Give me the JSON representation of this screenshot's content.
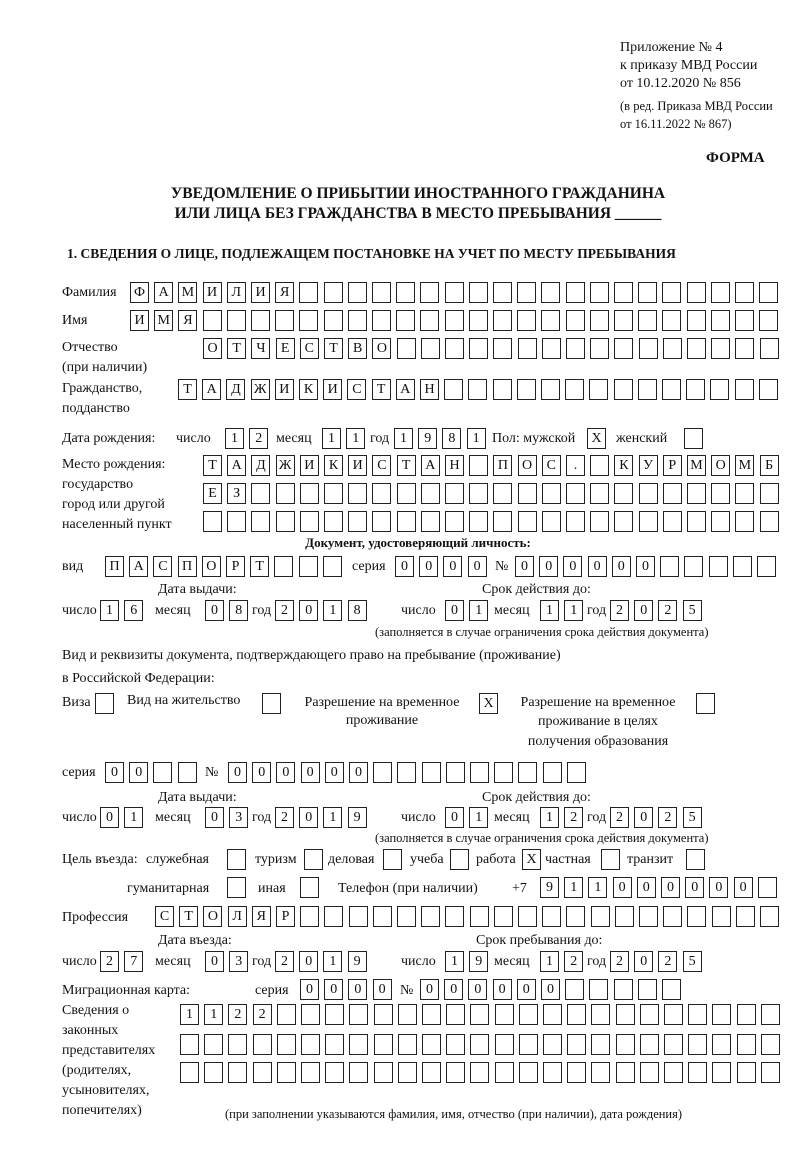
{
  "header": {
    "appendix": [
      "Приложение № 4",
      "к приказу МВД России",
      "от 10.12.2020 № 856"
    ],
    "revision": [
      "(в ред. Приказа МВД России",
      "от 16.11.2022 № 867)"
    ],
    "form_label": "ФОРМА",
    "title_line1": "УВЕДОМЛЕНИЕ О ПРИБЫТИИ ИНОСТРАННОГО ГРАЖДАНИНА",
    "title_line2": "ИЛИ ЛИЦА БЕЗ ГРАЖДАНСТВА В МЕСТО ПРЕБЫВАНИЯ ______",
    "section_title": "1. СВЕДЕНИЯ О ЛИЦЕ, ПОДЛЕЖАЩЕМ ПОСТАНОВКЕ НА УЧЕТ ПО МЕСТУ ПРЕБЫВАНИЯ"
  },
  "labels": {
    "day": "число",
    "month": "месяц",
    "year": "год",
    "series": "серия",
    "number": "№"
  },
  "person": {
    "surname": {
      "label": "Фамилия",
      "value": "ФАМИЛИЯ"
    },
    "name": {
      "label": "Имя",
      "value": "ИМЯ"
    },
    "patronymic": {
      "label1": "Отчество",
      "label2": "(при наличии)",
      "value": "ОТЧЕСТВО"
    },
    "citizenship": {
      "label1": "Гражданство,",
      "label2": "подданство",
      "value": "ТАДЖИКИСТАН"
    },
    "birth_date": {
      "label": "Дата рождения:",
      "day": "12",
      "month": "11",
      "year": "1981"
    },
    "sex": {
      "label": "Пол: мужской",
      "male": "X",
      "female_label": "женский",
      "female": ""
    },
    "birth_place": {
      "label": [
        "Место рождения:",
        "государство",
        "город или другой",
        "населенный пункт"
      ],
      "lines": [
        "ТАДЖИКИСТАН ПОС. КУРМОМБ",
        "ЕЗ",
        ""
      ]
    }
  },
  "identity_doc": {
    "heading": "Документ, удостоверяющий личность:",
    "kind_label": "вид",
    "kind": "ПАСПОРТ",
    "series": "0000",
    "number": "000000",
    "issue_label": "Дата выдачи:",
    "issue": {
      "day": "16",
      "month": "08",
      "year": "2018"
    },
    "valid_label": "Срок действия до:",
    "valid": {
      "day": "01",
      "month": "11",
      "year": "2025"
    },
    "note": "(заполняется в случае ограничения срока действия документа)"
  },
  "residence_doc": {
    "heading1": "Вид и реквизиты документа, подтверждающего право на пребывание (проживание)",
    "heading2": "в Российской Федерации:",
    "options": {
      "visa": {
        "label": "Виза",
        "mark": ""
      },
      "residence_permit": {
        "label": "Вид на жительство",
        "mark": ""
      },
      "temp_residence": {
        "label1": "Разрешение на временное",
        "label2": "проживание",
        "mark": "X"
      },
      "temp_residence_edu": {
        "label1": "Разрешение на временное",
        "label2": "проживание в целях",
        "label3": "получения образования",
        "mark": ""
      }
    },
    "series": "00",
    "number": "000000",
    "issue_label": "Дата выдачи:",
    "issue": {
      "day": "01",
      "month": "03",
      "year": "2019"
    },
    "valid_label": "Срок действия до:",
    "valid": {
      "day": "01",
      "month": "12",
      "year": "2025"
    },
    "note": "(заполняется в случае ограничения срока действия документа)"
  },
  "purpose": {
    "label": "Цель въезда:",
    "official": {
      "label": "служебная",
      "mark": ""
    },
    "tourism": {
      "label": "туризм",
      "mark": ""
    },
    "business": {
      "label": "деловая",
      "mark": ""
    },
    "study": {
      "label": "учеба",
      "mark": ""
    },
    "work": {
      "label": "работа",
      "mark": "X"
    },
    "private": {
      "label": "частная",
      "mark": ""
    },
    "transit": {
      "label": "транзит",
      "mark": ""
    },
    "humanitarian": {
      "label": "гуманитарная",
      "mark": ""
    },
    "other": {
      "label": "иная",
      "mark": ""
    }
  },
  "phone": {
    "label": "Телефон (при наличии)",
    "prefix": "+7",
    "value": "911000000"
  },
  "profession": {
    "label": "Профессия",
    "value": "СТОЛЯР"
  },
  "entry": {
    "entry_label": "Дата въезда:",
    "entry": {
      "day": "27",
      "month": "03",
      "year": "2019"
    },
    "stay_label": "Срок пребывания до:",
    "stay": {
      "day": "19",
      "month": "12",
      "year": "2025"
    }
  },
  "migration_card": {
    "label": "Миграционная карта:",
    "series": "0000",
    "number": "000000"
  },
  "representatives": {
    "label": [
      "Сведения о",
      "законных",
      "представителях",
      "(родителях,",
      "усыновителях,",
      "попечителях)"
    ],
    "lines": [
      "1122",
      "",
      ""
    ],
    "note": "(при заполнении указываются фамилия, имя, отчество (при наличии), дата рождения)"
  }
}
